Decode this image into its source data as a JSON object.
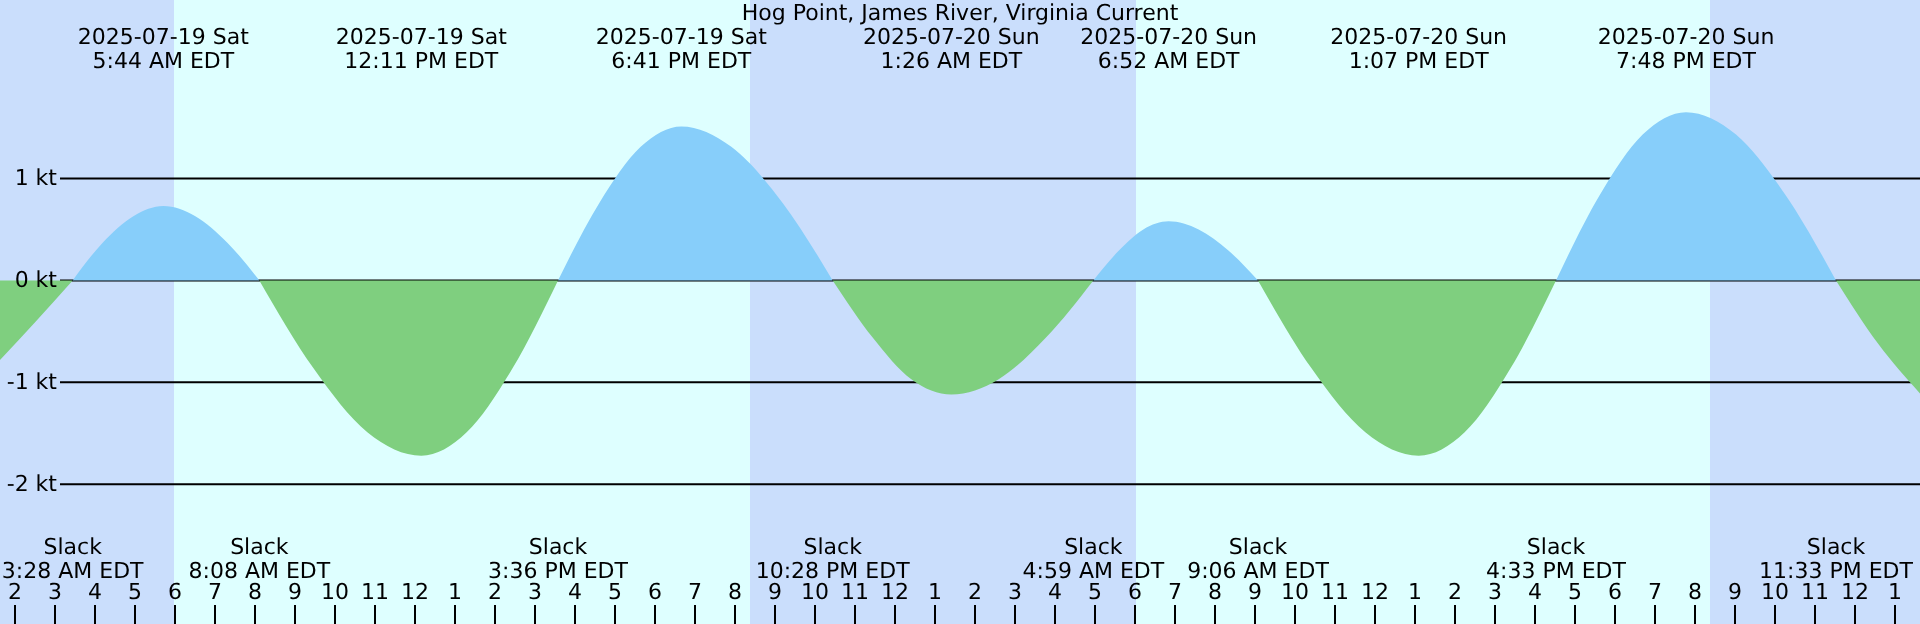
{
  "chart_data": {
    "type": "area",
    "title": "Hog Point, James River, Virginia Current",
    "xlim": [
      "2025-07-19T01:39",
      "2025-07-21T01:39"
    ],
    "ylim": [
      -3.37,
      2.75
    ],
    "xticks": [
      {
        "value": "2025-07-19T02:00",
        "label": "2"
      },
      {
        "value": "2025-07-19T03:00",
        "label": "3"
      },
      {
        "value": "2025-07-19T04:00",
        "label": "4"
      },
      {
        "value": "2025-07-19T05:00",
        "label": "5"
      },
      {
        "value": "2025-07-19T06:00",
        "label": "6"
      },
      {
        "value": "2025-07-19T07:00",
        "label": "7"
      },
      {
        "value": "2025-07-19T08:00",
        "label": "8"
      },
      {
        "value": "2025-07-19T09:00",
        "label": "9"
      },
      {
        "value": "2025-07-19T10:00",
        "label": "10"
      },
      {
        "value": "2025-07-19T11:00",
        "label": "11"
      },
      {
        "value": "2025-07-19T12:00",
        "label": "12"
      },
      {
        "value": "2025-07-19T13:00",
        "label": "1"
      },
      {
        "value": "2025-07-19T14:00",
        "label": "2"
      },
      {
        "value": "2025-07-19T15:00",
        "label": "3"
      },
      {
        "value": "2025-07-19T16:00",
        "label": "4"
      },
      {
        "value": "2025-07-19T17:00",
        "label": "5"
      },
      {
        "value": "2025-07-19T18:00",
        "label": "6"
      },
      {
        "value": "2025-07-19T19:00",
        "label": "7"
      },
      {
        "value": "2025-07-19T20:00",
        "label": "8"
      },
      {
        "value": "2025-07-19T21:00",
        "label": "9"
      },
      {
        "value": "2025-07-19T22:00",
        "label": "10"
      },
      {
        "value": "2025-07-19T23:00",
        "label": "11"
      },
      {
        "value": "2025-07-20T00:00",
        "label": "12"
      },
      {
        "value": "2025-07-20T01:00",
        "label": "1"
      },
      {
        "value": "2025-07-20T02:00",
        "label": "2"
      },
      {
        "value": "2025-07-20T03:00",
        "label": "3"
      },
      {
        "value": "2025-07-20T04:00",
        "label": "4"
      },
      {
        "value": "2025-07-20T05:00",
        "label": "5"
      },
      {
        "value": "2025-07-20T06:00",
        "label": "6"
      },
      {
        "value": "2025-07-20T07:00",
        "label": "7"
      },
      {
        "value": "2025-07-20T08:00",
        "label": "8"
      },
      {
        "value": "2025-07-20T09:00",
        "label": "9"
      },
      {
        "value": "2025-07-20T10:00",
        "label": "10"
      },
      {
        "value": "2025-07-20T11:00",
        "label": "11"
      },
      {
        "value": "2025-07-20T12:00",
        "label": "12"
      },
      {
        "value": "2025-07-20T13:00",
        "label": "1"
      },
      {
        "value": "2025-07-20T14:00",
        "label": "2"
      },
      {
        "value": "2025-07-20T15:00",
        "label": "3"
      },
      {
        "value": "2025-07-20T16:00",
        "label": "4"
      },
      {
        "value": "2025-07-20T17:00",
        "label": "5"
      },
      {
        "value": "2025-07-20T18:00",
        "label": "6"
      },
      {
        "value": "2025-07-20T19:00",
        "label": "7"
      },
      {
        "value": "2025-07-20T20:00",
        "label": "8"
      },
      {
        "value": "2025-07-20T21:00",
        "label": "9"
      },
      {
        "value": "2025-07-20T22:00",
        "label": "10"
      },
      {
        "value": "2025-07-20T23:00",
        "label": "11"
      },
      {
        "value": "2025-07-21T00:00",
        "label": "12"
      },
      {
        "value": "2025-07-21T01:00",
        "label": "1"
      }
    ],
    "yticks": [
      {
        "value": -2,
        "label": "-2 kt"
      },
      {
        "value": -1,
        "label": "-1 kt"
      },
      {
        "value": 0,
        "label": "0 kt"
      },
      {
        "value": 1,
        "label": "1 kt"
      }
    ],
    "grid": "y",
    "bands": [
      {
        "axis": "x",
        "from": "2025-07-19T01:39",
        "to": "2025-07-19T06:00",
        "color": "#cadefc"
      },
      {
        "axis": "x",
        "from": "2025-07-19T06:00",
        "to": "2025-07-19T20:24",
        "color": "#deffff"
      },
      {
        "axis": "x",
        "from": "2025-07-19T20:24",
        "to": "2025-07-20T06:03",
        "color": "#cadefc"
      },
      {
        "axis": "x",
        "from": "2025-07-20T06:03",
        "to": "2025-07-20T20:24",
        "color": "#deffff"
      },
      {
        "axis": "x",
        "from": "2025-07-20T20:24",
        "to": "2025-07-21T01:39",
        "color": "#cadefc"
      }
    ],
    "series": [
      {
        "color": "#7fcf7f",
        "x": [
          "2025-07-19T01:39",
          "2025-07-19T02:33",
          "2025-07-19T03:28"
        ],
        "values": [
          -0.78,
          -0.4,
          0
        ]
      },
      {
        "color": "#87cefa",
        "x": [
          "2025-07-19T03:28",
          "2025-07-19T04:13",
          "2025-07-19T04:59",
          "2025-07-19T05:44",
          "2025-07-19T06:32",
          "2025-07-19T07:20",
          "2025-07-19T08:08"
        ],
        "values": [
          0,
          0.37,
          0.63,
          0.73,
          0.63,
          0.37,
          0
        ]
      },
      {
        "color": "#7fcf7f",
        "x": [
          "2025-07-19T08:08",
          "2025-07-19T09:29",
          "2025-07-19T10:50",
          "2025-07-19T12:11",
          "2025-07-19T13:19",
          "2025-07-19T14:28",
          "2025-07-19T15:36"
        ],
        "values": [
          0,
          -0.86,
          -1.49,
          -1.72,
          -1.49,
          -0.86,
          0
        ]
      },
      {
        "color": "#87cefa",
        "x": [
          "2025-07-19T15:36",
          "2025-07-19T16:38",
          "2025-07-19T17:40",
          "2025-07-19T18:41",
          "2025-07-19T19:56",
          "2025-07-19T21:13",
          "2025-07-19T22:28"
        ],
        "values": [
          0,
          0.76,
          1.31,
          1.51,
          1.31,
          0.76,
          0
        ]
      },
      {
        "color": "#7fcf7f",
        "x": [
          "2025-07-19T22:28",
          "2025-07-19T23:28",
          "2025-07-20T00:26",
          "2025-07-20T01:26",
          "2025-07-20T02:37",
          "2025-07-20T03:48",
          "2025-07-20T04:59"
        ],
        "values": [
          0,
          -0.56,
          -0.97,
          -1.12,
          -0.97,
          -0.56,
          0
        ]
      },
      {
        "color": "#87cefa",
        "x": [
          "2025-07-20T04:59",
          "2025-07-20T05:37",
          "2025-07-20T06:14",
          "2025-07-20T06:52",
          "2025-07-20T07:37",
          "2025-07-20T08:22",
          "2025-07-20T09:06"
        ],
        "values": [
          0,
          0.29,
          0.5,
          0.58,
          0.5,
          0.29,
          0
        ]
      },
      {
        "color": "#7fcf7f",
        "x": [
          "2025-07-20T09:06",
          "2025-07-20T10:26",
          "2025-07-20T11:47",
          "2025-07-20T13:07",
          "2025-07-20T14:16",
          "2025-07-20T15:25",
          "2025-07-20T16:33"
        ],
        "values": [
          0,
          -0.86,
          -1.49,
          -1.72,
          -1.49,
          -0.86,
          0
        ]
      },
      {
        "color": "#87cefa",
        "x": [
          "2025-07-20T16:33",
          "2025-07-20T17:38",
          "2025-07-20T18:43",
          "2025-07-20T19:48",
          "2025-07-20T21:03",
          "2025-07-20T22:18",
          "2025-07-20T23:33"
        ],
        "values": [
          0,
          0.83,
          1.43,
          1.65,
          1.43,
          0.83,
          0
        ]
      },
      {
        "color": "#7fcf7f",
        "x": [
          "2025-07-20T23:33",
          "2025-07-21T00:36",
          "2025-07-21T01:39"
        ],
        "values": [
          0,
          -0.62,
          -1.11
        ]
      }
    ],
    "annotations": [
      "2025-07-19 Sat\n5:44 AM EDT",
      "2025-07-19 Sat\n12:11 PM EDT",
      "2025-07-19 Sat\n6:41 PM EDT",
      "2025-07-20 Sun\n1:26 AM EDT",
      "2025-07-20 Sun\n6:52 AM EDT",
      "2025-07-20 Sun\n1:07 PM EDT",
      "2025-07-20 Sun\n7:48 PM EDT",
      "Slack\n3:28 AM EDT",
      "Slack\n8:08 AM EDT",
      "Slack\n3:36 PM EDT",
      "Slack\n10:28 PM EDT",
      "Slack\n4:59 AM EDT",
      "Slack\n9:06 AM EDT",
      "Slack\n4:33 PM EDT",
      "Slack\n11:33 PM EDT"
    ]
  }
}
